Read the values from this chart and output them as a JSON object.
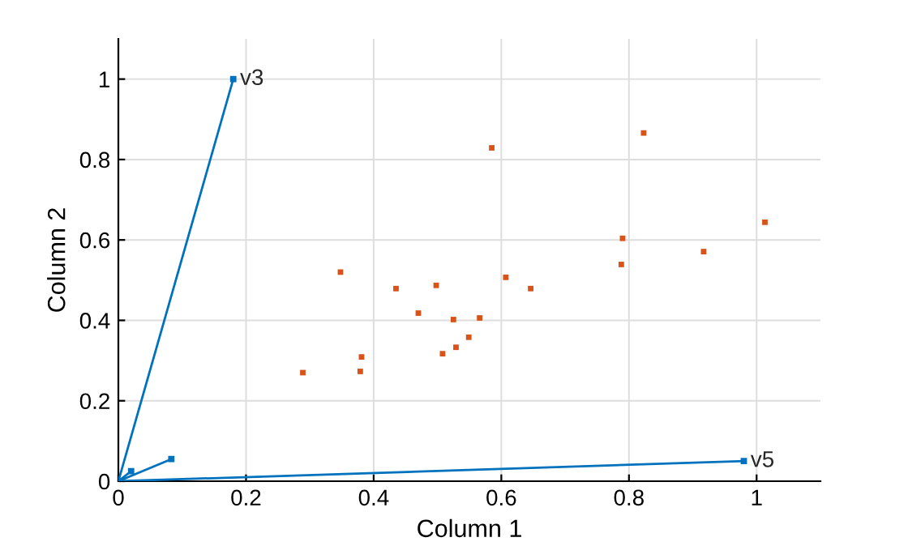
{
  "chart_data": {
    "type": "scatter",
    "xlabel": "Column 1",
    "ylabel": "Column 2",
    "xlim": [
      0,
      1.1
    ],
    "ylim": [
      0,
      1.1
    ],
    "xticks": [
      0,
      0.2,
      0.4,
      0.6,
      0.8,
      1
    ],
    "yticks": [
      0,
      0.2,
      0.4,
      0.6,
      0.8,
      1
    ],
    "grid": true,
    "marker": "square",
    "series": [
      {
        "color": "#d95319",
        "x": [
          0.289,
          0.348,
          0.381,
          0.379,
          0.435,
          0.47,
          0.498,
          0.508,
          0.525,
          0.529,
          0.549,
          0.566,
          0.585,
          0.607,
          0.646,
          0.79,
          0.788,
          0.823,
          0.917,
          1.013
        ],
        "values": [
          0.27,
          0.52,
          0.309,
          0.273,
          0.479,
          0.418,
          0.487,
          0.317,
          0.402,
          0.333,
          0.358,
          0.406,
          0.829,
          0.507,
          0.479,
          0.604,
          0.539,
          0.866,
          0.571,
          0.644
        ]
      },
      {
        "type": "line",
        "name": "v3",
        "color": "#0072bd",
        "x": [
          0,
          0.18
        ],
        "values": [
          0,
          1.0
        ]
      },
      {
        "type": "line",
        "name": "v5",
        "color": "#0072bd",
        "x": [
          0,
          0.98
        ],
        "values": [
          0,
          0.05
        ]
      },
      {
        "type": "line",
        "color": "#0072bd",
        "x": [
          0,
          0.083
        ],
        "values": [
          0,
          0.055
        ]
      },
      {
        "type": "line",
        "color": "#0072bd",
        "x": [
          0,
          0.02
        ],
        "values": [
          0,
          0.025
        ]
      }
    ]
  }
}
